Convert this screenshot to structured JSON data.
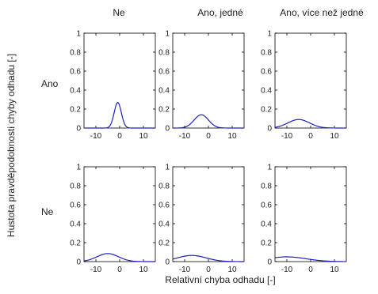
{
  "chart_data": {
    "type": "line",
    "layout": "2x3 grid of small multiples",
    "column_titles": [
      "Ne",
      "Ano, jedné",
      "Ano, více než jedné"
    ],
    "row_labels": [
      "Ano",
      "Ne"
    ],
    "ylabel": "Hustota pravděpodobnosti chyby odhadu [-]",
    "xlabel": "Relativní chyba odhadu [-]",
    "xlim": [
      -15,
      15
    ],
    "ylim": [
      0,
      1
    ],
    "xticks": [
      -10,
      0,
      10
    ],
    "xtick_labels": [
      "-10",
      "0",
      "10"
    ],
    "yticks": [
      0,
      0.2,
      0.4,
      0.6,
      0.8,
      1
    ],
    "ytick_labels": [
      "0",
      "0.2",
      "0.4",
      "0.6",
      "0.8",
      "1"
    ],
    "line_color": "#1f1fbf",
    "grid": false,
    "panels": [
      {
        "row": 0,
        "col": 0,
        "mean": -0.8,
        "sd": 1.5,
        "peak": 0.27
      },
      {
        "row": 0,
        "col": 1,
        "mean": -3.0,
        "sd": 3.0,
        "peak": 0.14
      },
      {
        "row": 0,
        "col": 2,
        "mean": -5.0,
        "sd": 4.5,
        "peak": 0.09
      },
      {
        "row": 1,
        "col": 0,
        "mean": -5.0,
        "sd": 4.5,
        "peak": 0.085
      },
      {
        "row": 1,
        "col": 1,
        "mean": -7.0,
        "sd": 6.0,
        "peak": 0.065
      },
      {
        "row": 1,
        "col": 2,
        "mean": -10.0,
        "sd": 8.0,
        "peak": 0.05
      }
    ]
  }
}
